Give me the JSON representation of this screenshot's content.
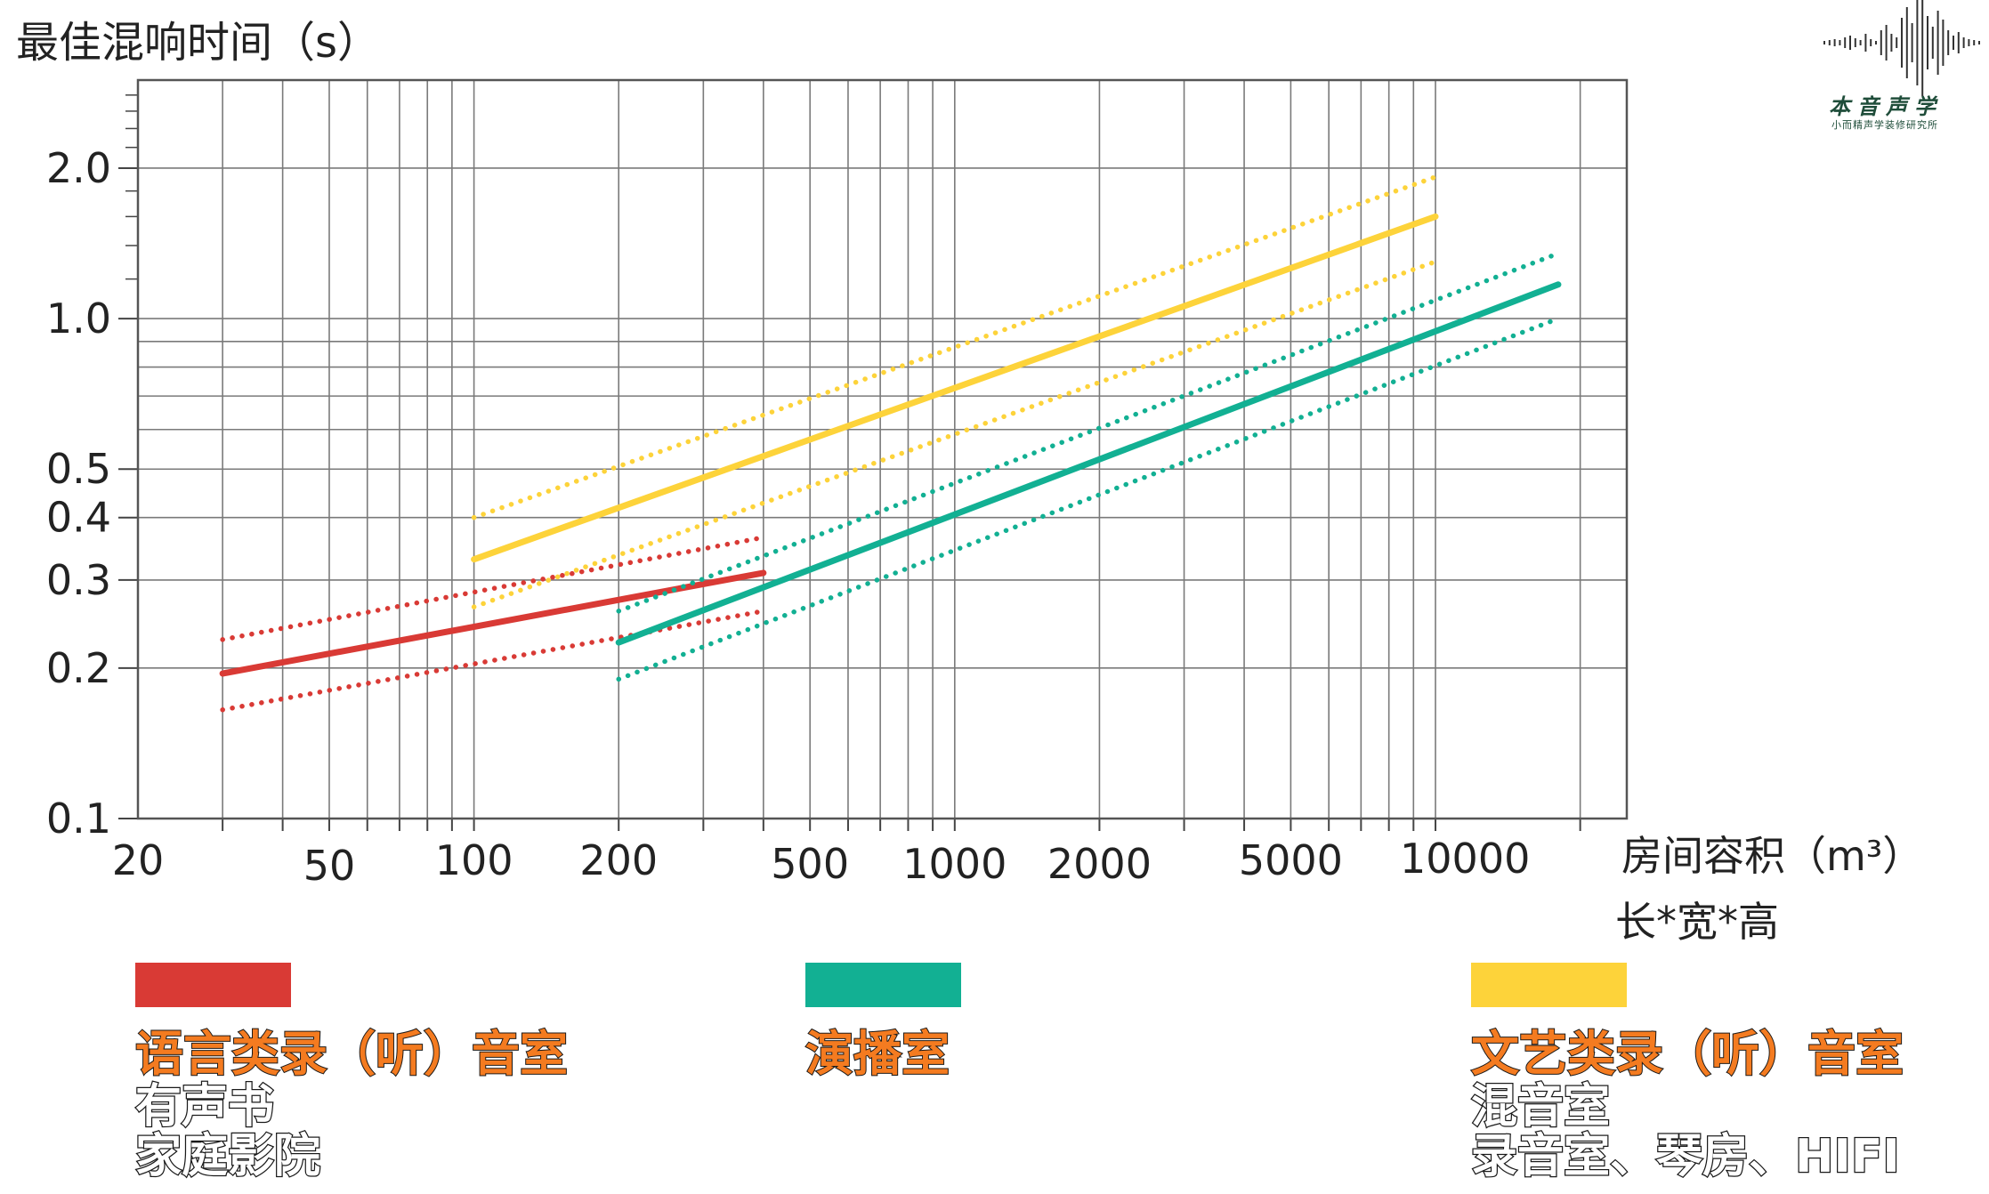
{
  "chart_data": {
    "type": "line",
    "ylabel": "最佳混响时间（s）",
    "xlabel": "房间容积（m³）",
    "xlabel_sub": "长*宽*高",
    "x_scale": "log",
    "y_scale": "log",
    "xlim": [
      20,
      25000
    ],
    "ylim": [
      0.1,
      3.0
    ],
    "x_ticks": [
      20,
      50,
      100,
      200,
      500,
      1000,
      2000,
      5000,
      10000
    ],
    "x_tick_labels": [
      "20",
      "50",
      "100",
      "200",
      "500",
      "1000",
      "2000",
      "5000",
      "10000"
    ],
    "y_ticks": [
      0.1,
      0.2,
      0.3,
      0.4,
      0.5,
      1.0,
      2.0
    ],
    "y_tick_labels": [
      "0.1",
      "0.2",
      "0.3",
      "0.4",
      "0.5",
      "1.0",
      "2.0"
    ],
    "grid": true,
    "series": [
      {
        "group": "语言类录（听）音室",
        "color": "#d93a35",
        "style": "solid",
        "x": [
          30,
          400
        ],
        "y": [
          0.195,
          0.31
        ]
      },
      {
        "group": "语言类录（听）音室",
        "color": "#d93a35",
        "style": "dotted",
        "x": [
          30,
          400
        ],
        "y": [
          0.228,
          0.365
        ]
      },
      {
        "group": "语言类录（听）音室",
        "color": "#d93a35",
        "style": "dotted",
        "x": [
          30,
          400
        ],
        "y": [
          0.165,
          0.26
        ]
      },
      {
        "group": "演播室",
        "color": "#12b093",
        "style": "solid",
        "x": [
          200,
          18000
        ],
        "y": [
          0.225,
          1.17
        ]
      },
      {
        "group": "演播室",
        "color": "#12b093",
        "style": "dotted",
        "x": [
          200,
          18000
        ],
        "y": [
          0.26,
          1.35
        ]
      },
      {
        "group": "演播室",
        "color": "#12b093",
        "style": "dotted",
        "x": [
          200,
          18000
        ],
        "y": [
          0.19,
          1.0
        ]
      },
      {
        "group": "文艺类录（听）音室",
        "color": "#fdd33a",
        "style": "solid",
        "x": [
          100,
          10000
        ],
        "y": [
          0.33,
          1.6
        ]
      },
      {
        "group": "文艺类录（听）音室",
        "color": "#fdd33a",
        "style": "dotted",
        "x": [
          100,
          10000
        ],
        "y": [
          0.4,
          1.92
        ]
      },
      {
        "group": "文艺类录（听）音室",
        "color": "#fdd33a",
        "style": "dotted",
        "x": [
          100,
          10000
        ],
        "y": [
          0.265,
          1.3
        ]
      }
    ]
  },
  "legend": [
    {
      "color": "#d93a35",
      "title": "语言类录（听）音室",
      "sub": [
        "有声书",
        "家庭影院"
      ]
    },
    {
      "color": "#12b093",
      "title": "演播室",
      "sub": []
    },
    {
      "color": "#fdd33a",
      "title": "文艺类录（听）音室",
      "sub": [
        "混音室",
        "录音室、琴房、HIFI"
      ]
    }
  ],
  "logo": {
    "name": "本音声学",
    "tagline": "小而精声学装修研究所"
  }
}
